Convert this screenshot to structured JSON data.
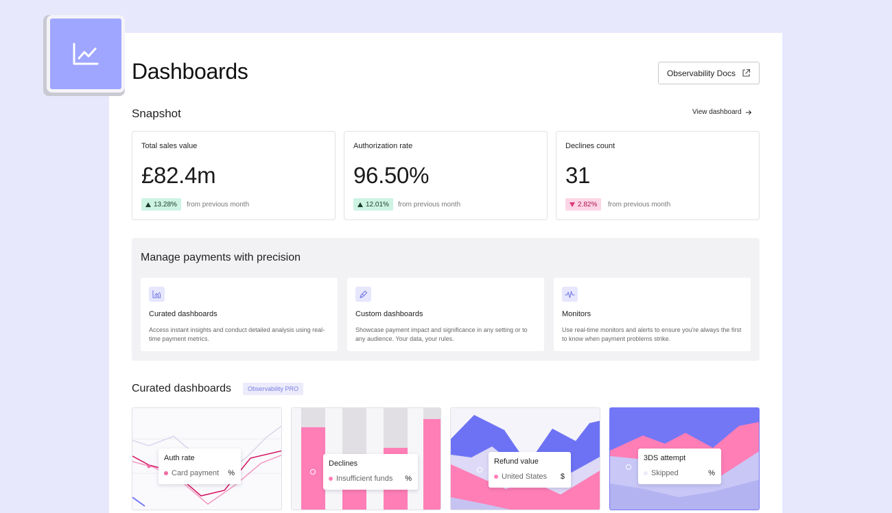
{
  "header": {
    "title": "Dashboards",
    "docs_button": "Observability Docs"
  },
  "snapshot": {
    "title": "Snapshot",
    "view_link": "View dashboard",
    "stats": [
      {
        "label": "Total sales value",
        "value": "£82.4m",
        "delta": "13.28%",
        "direction": "up",
        "sub": "from previous month"
      },
      {
        "label": "Authorization rate",
        "value": "96.50%",
        "delta": "12.01%",
        "direction": "up",
        "sub": "from previous month"
      },
      {
        "label": "Declines count",
        "value": "31",
        "delta": "2.82%",
        "direction": "down",
        "sub": "from previous month"
      }
    ]
  },
  "features": {
    "title": "Manage payments with precision",
    "cards": [
      {
        "icon": "chart-icon",
        "title": "Curated dashboards",
        "desc": "Access instant insights and conduct detailed analysis using real-time payment metrics."
      },
      {
        "icon": "pen-icon",
        "title": "Custom dashboards",
        "desc": "Showcase payment impact and significance in any setting or to any audience. Your data, your rules."
      },
      {
        "icon": "pulse-icon",
        "title": "Monitors",
        "desc": "Use real-time monitors and alerts to ensure you're always the first to know when payment problems strike."
      }
    ]
  },
  "curated": {
    "title": "Curated dashboards",
    "badge": "Observability PRO",
    "tiles": [
      {
        "title": "Auth rate",
        "series": "Card payment",
        "unit": "%"
      },
      {
        "title": "Declines",
        "series": "Insufficient funds",
        "unit": "%"
      },
      {
        "title": "Refund value",
        "series": "United States",
        "unit": "$"
      },
      {
        "title": "3DS attempt",
        "series": "Skipped",
        "unit": "%"
      }
    ]
  },
  "colors": {
    "accent": "#9fa6ff",
    "pink": "#ff7eb6",
    "indigo": "#7178f8",
    "up_bg": "#cdf3e3",
    "down_bg": "#fcd6e6"
  }
}
